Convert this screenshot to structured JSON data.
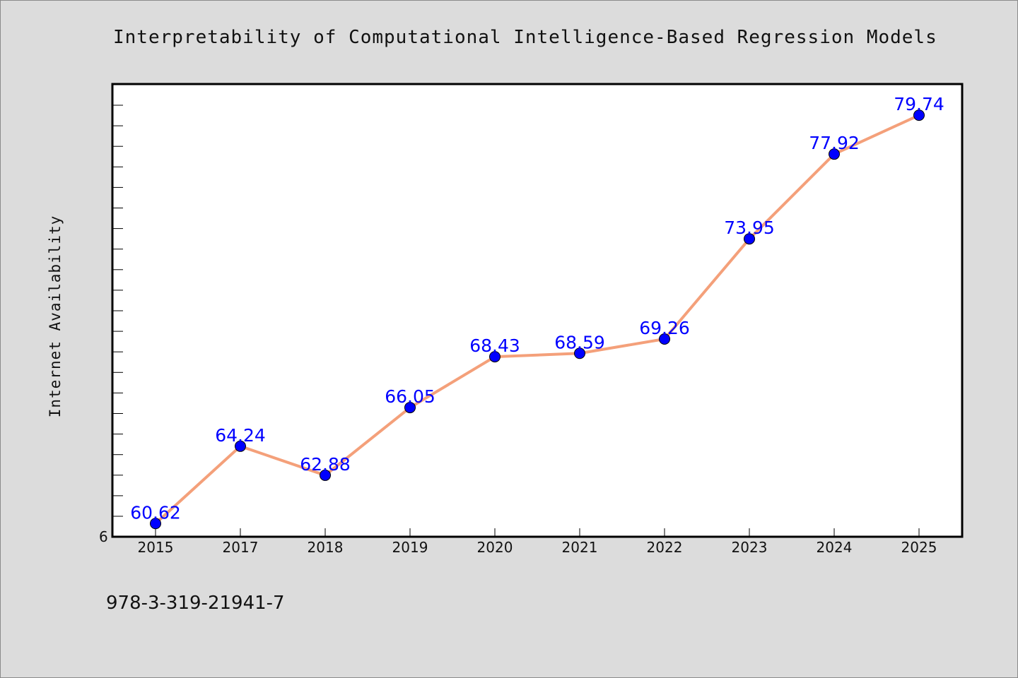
{
  "chart_data": {
    "type": "line",
    "title": "Interpretability of Computational Intelligence-Based Regression Models",
    "xlabel": "",
    "ylabel": "Internet Availability",
    "categories": [
      "2015",
      "2017",
      "2018",
      "2019",
      "2020",
      "2021",
      "2022",
      "2023",
      "2024",
      "2025"
    ],
    "series": [
      {
        "values": [
          60.62,
          64.24,
          62.88,
          66.05,
          68.43,
          68.59,
          69.26,
          73.95,
          77.92,
          79.74
        ],
        "labels": [
          "60.62",
          "64.24",
          "62.88",
          "66.05",
          "68.43",
          "68.59",
          "69.26",
          "73.95",
          "77.92",
          "79.74"
        ]
      }
    ],
    "y_tick_labels": [
      "6"
    ],
    "ylim": [
      60,
      81.2
    ],
    "grid": false,
    "line_color": "#f4a07a",
    "marker_color": "#0000ff",
    "label_color": "#0000ff"
  },
  "footer": {
    "isbn": "978-3-319-21941-7"
  }
}
